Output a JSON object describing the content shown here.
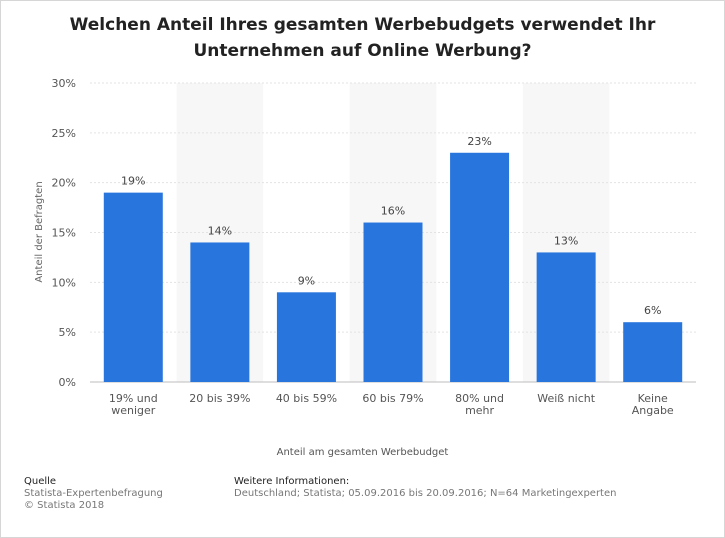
{
  "title_line1": "Welchen Anteil Ihres gesamten Werbebudgets verwendet Ihr",
  "title_line2": "Unternehmen auf Online Werbung?",
  "footer": {
    "source_heading": "Quelle",
    "source_line1": "Statista-Expertenbefragung",
    "source_line2": "© Statista 2018",
    "info_heading": "Weitere Informationen:",
    "info_line1": "Deutschland; Statista; 05.09.2016 bis 20.09.2016; N=64 Marketingexperten"
  },
  "colors": {
    "bar": "#2876dd",
    "band": "#f7f7f7",
    "grid": "#e3e3e3"
  },
  "chart_data": {
    "type": "bar",
    "title": "Welchen Anteil Ihres gesamten Werbebudgets verwendet Ihr Unternehmen auf Online Werbung?",
    "xlabel": "Anteil am gesamten Werbebudget",
    "ylabel": "Anteil der Befragten",
    "categories": [
      [
        "19% und",
        "weniger"
      ],
      [
        "20 bis 39%"
      ],
      [
        "40 bis 59%"
      ],
      [
        "60 bis 79%"
      ],
      [
        "80% und",
        "mehr"
      ],
      [
        "Weiß nicht"
      ],
      [
        "Keine",
        "Angabe"
      ]
    ],
    "values": [
      19,
      14,
      9,
      16,
      23,
      13,
      6
    ],
    "value_labels": [
      "19%",
      "14%",
      "9%",
      "16%",
      "23%",
      "13%",
      "6%"
    ],
    "yticks": [
      "0%",
      "5%",
      "10%",
      "15%",
      "20%",
      "25%",
      "30%"
    ],
    "ylim": [
      0,
      30
    ],
    "grid": true
  }
}
